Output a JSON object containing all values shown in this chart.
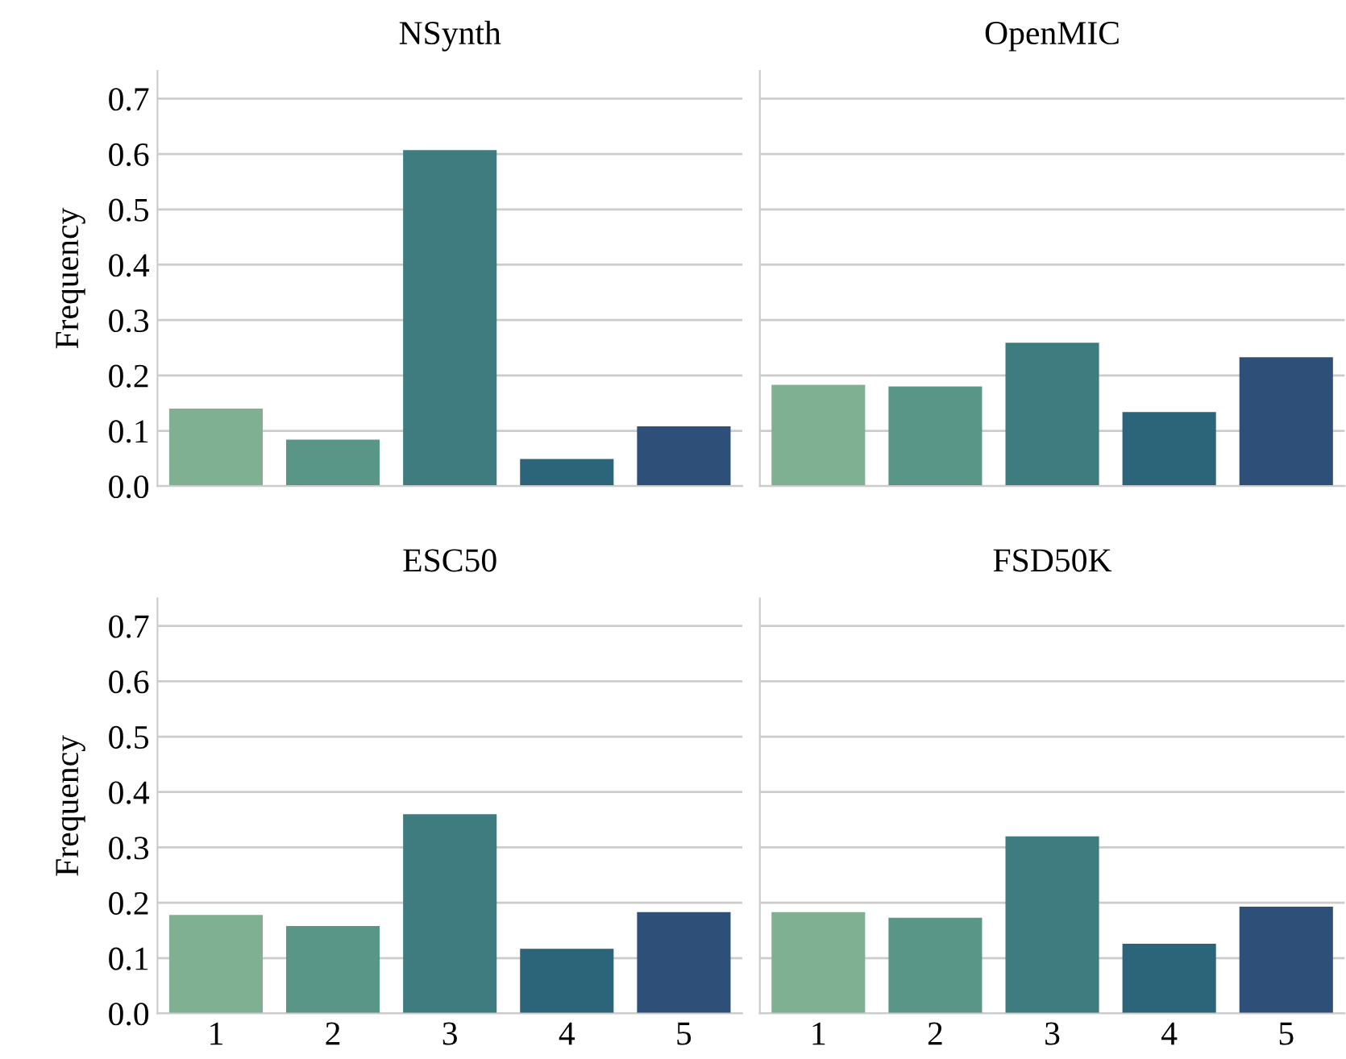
{
  "chart_data": [
    {
      "type": "bar",
      "title": "NSynth",
      "ylabel": "Frequency",
      "categories": [
        "1",
        "2",
        "3",
        "4",
        "5"
      ],
      "values": [
        0.14,
        0.084,
        0.607,
        0.049,
        0.108
      ],
      "colors": [
        "#7fb092",
        "#5a9688",
        "#3f7c80",
        "#2c6579",
        "#2e5078"
      ],
      "ylim": [
        0,
        0.75
      ],
      "yticks": [
        {
          "value": 0,
          "label": "0.0"
        },
        0.1,
        0.2,
        0.3,
        0.4,
        0.5,
        0.6,
        0.7
      ],
      "grid": "y",
      "tick_labels": "y"
    },
    {
      "type": "bar",
      "title": "OpenMIC",
      "categories": [
        "1",
        "2",
        "3",
        "4",
        "5"
      ],
      "values": [
        0.183,
        0.18,
        0.259,
        0.134,
        0.233
      ],
      "colors": [
        "#7fb092",
        "#5a9688",
        "#3f7c80",
        "#2c6579",
        "#2e5078"
      ],
      "ylim": [
        0,
        0.75
      ],
      "yticks": [
        0.0,
        0.1,
        0.2,
        0.3,
        0.4,
        0.5,
        0.6,
        0.7
      ],
      "grid": "y",
      "tick_labels": false
    },
    {
      "type": "bar",
      "title": "ESC50",
      "ylabel": "Frequency",
      "categories": [
        "1",
        "2",
        "3",
        "4",
        "5"
      ],
      "values": [
        0.178,
        0.158,
        0.36,
        0.117,
        0.183
      ],
      "colors": [
        "#7fb092",
        "#5a9688",
        "#3f7c80",
        "#2c6579",
        "#2e5078"
      ],
      "ylim": [
        0,
        0.75
      ],
      "yticks": [
        {
          "value": 0,
          "label": "0.0"
        },
        0.1,
        0.2,
        0.3,
        0.4,
        0.5,
        0.6,
        0.7
      ],
      "grid": "y"
    },
    {
      "type": "bar",
      "title": "FSD50K",
      "categories": [
        "1",
        "2",
        "3",
        "4",
        "5"
      ],
      "values": [
        0.183,
        0.173,
        0.32,
        0.126,
        0.193
      ],
      "colors": [
        "#7fb092",
        "#5a9688",
        "#3f7c80",
        "#2c6579",
        "#2e5078"
      ],
      "ylim": [
        0,
        0.75
      ],
      "yticks": [
        0.0,
        0.1,
        0.2,
        0.3,
        0.4,
        0.5,
        0.6,
        0.7
      ],
      "grid": "y",
      "tick_labels": "x"
    }
  ]
}
